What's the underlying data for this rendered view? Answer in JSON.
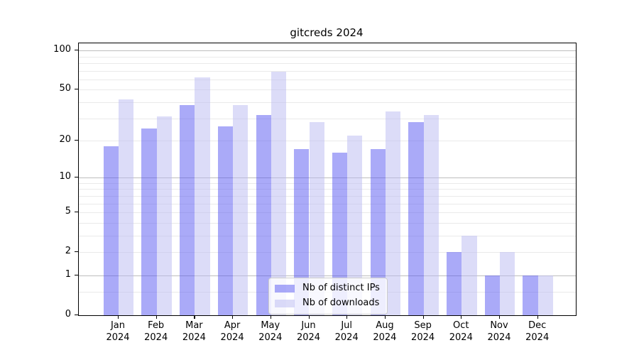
{
  "chart_data": {
    "type": "bar",
    "title": "gitcreds 2024",
    "categories": [
      "Jan 2024",
      "Feb 2024",
      "Mar 2024",
      "Apr 2024",
      "May 2024",
      "Jun 2024",
      "Jul 2024",
      "Aug 2024",
      "Sep 2024",
      "Oct 2024",
      "Nov 2024",
      "Dec 2024"
    ],
    "series": [
      {
        "name": "Nb of distinct IPs",
        "color": "#5555f1",
        "alpha": 0.5,
        "values": [
          18,
          25,
          38,
          26,
          32,
          17,
          16,
          17,
          28,
          2,
          1,
          1
        ]
      },
      {
        "name": "Nb of downloads",
        "color": "#b9b9f1",
        "alpha": 0.5,
        "values": [
          42,
          31,
          62,
          38,
          69,
          28,
          22,
          34,
          32,
          3,
          2,
          1
        ]
      }
    ],
    "y_axis": {
      "scale": "log1p",
      "tick_values": [
        0,
        1,
        2,
        5,
        10,
        20,
        50,
        100
      ],
      "tick_labels": [
        "0",
        "1",
        "2",
        "5",
        "10",
        "20",
        "50",
        "100"
      ],
      "ylim": [
        0,
        113
      ]
    },
    "x_axis": {
      "tick_labels": [
        "Jan 2024",
        "Feb 2024",
        "Mar 2024",
        "Apr 2024",
        "May 2024",
        "Jun 2024",
        "Jul 2024",
        "Aug 2024",
        "Sep 2024",
        "Oct 2024",
        "Nov 2024",
        "Dec 2024"
      ]
    },
    "grid": true,
    "major_gridline_values": [
      1,
      10,
      100
    ],
    "minor_gridline_values": [
      0.5,
      2,
      3,
      4,
      5,
      6,
      7,
      8,
      9,
      20,
      30,
      40,
      50,
      60,
      70,
      80,
      90
    ],
    "legend_position": "lower center",
    "colors": {
      "major_grid": "#bdbdbd",
      "minor_grid": "#eaeaea",
      "axis": "#000000",
      "background": "#ffffff"
    }
  }
}
